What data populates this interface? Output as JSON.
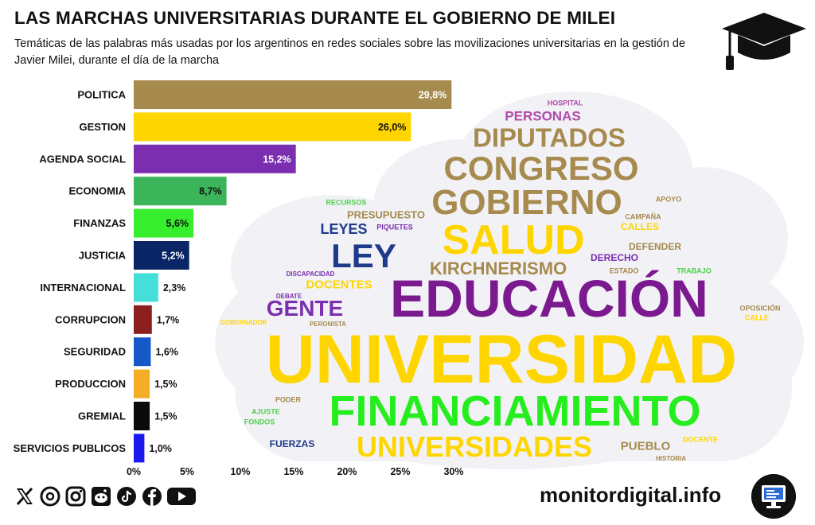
{
  "header": {
    "title": "LAS MARCHAS UNIVERSITARIAS DURANTE EL GOBIERNO DE MILEI",
    "subtitle": "Temáticas de las palabras más usadas por los argentinos en redes sociales sobre las movilizaciones universitarias en la gestión de Javier Milei, durante el día de la marcha"
  },
  "chart_data": {
    "type": "bar",
    "orientation": "horizontal",
    "categories": [
      "POLITICA",
      "GESTION",
      "AGENDA SOCIAL",
      "ECONOMIA",
      "FINANZAS",
      "JUSTICIA",
      "INTERNACIONAL",
      "CORRUPCION",
      "SEGURIDAD",
      "PRODUCCION",
      "GREMIAL",
      "SERVICIOS PUBLICOS"
    ],
    "values": [
      29.8,
      26.0,
      15.2,
      8.7,
      5.6,
      5.2,
      2.3,
      1.7,
      1.6,
      1.5,
      1.5,
      1.0
    ],
    "value_labels": [
      "29,8%",
      "26,0%",
      "15,2%",
      "8,7%",
      "5,6%",
      "5,2%",
      "2,3%",
      "1,7%",
      "1,6%",
      "1,5%",
      "1,5%",
      "1,0%"
    ],
    "colors": [
      "#a68a4e",
      "#ffd500",
      "#7b2fb0",
      "#3cb55a",
      "#36ee2e",
      "#0a2566",
      "#43dfd8",
      "#8c1f1f",
      "#1658c8",
      "#f4ad24",
      "#0a0a0a",
      "#1a1af0"
    ],
    "label_colors": [
      "#ffffff",
      "#111111",
      "#ffffff",
      "#111111",
      "#111111",
      "#ffffff",
      "#111111",
      "#111111",
      "#111111",
      "#111111",
      "#111111",
      "#111111"
    ],
    "xlim": [
      0,
      30
    ],
    "xticks": [
      0,
      5,
      10,
      15,
      20,
      25,
      30
    ],
    "xtick_labels": [
      "0%",
      "5%",
      "10%",
      "15%",
      "20%",
      "25%",
      "30%"
    ],
    "xlabel": "",
    "ylabel": ""
  },
  "word_cloud": [
    {
      "text": "HOSPITAL",
      "color": "#b04aa8",
      "weight": 1
    },
    {
      "text": "PERSONAS",
      "color": "#b04aa8",
      "weight": 4
    },
    {
      "text": "DIPUTADOS",
      "color": "#a68a4e",
      "weight": 7
    },
    {
      "text": "CONGRESO",
      "color": "#a68a4e",
      "weight": 8
    },
    {
      "text": "GOBIERNO",
      "color": "#a68a4e",
      "weight": 8
    },
    {
      "text": "RECURSOS",
      "color": "#4fd04f",
      "weight": 1
    },
    {
      "text": "APOYO",
      "color": "#a68a4e",
      "weight": 1
    },
    {
      "text": "PRESUPUESTO",
      "color": "#a68a4e",
      "weight": 2
    },
    {
      "text": "CAMPAÑA",
      "color": "#a68a4e",
      "weight": 1
    },
    {
      "text": "LEYES",
      "color": "#1f3a8a",
      "weight": 4
    },
    {
      "text": "PIQUETES",
      "color": "#7b2fb0",
      "weight": 1
    },
    {
      "text": "CALLES",
      "color": "#ffd500",
      "weight": 2
    },
    {
      "text": "SALUD",
      "color": "#ffd500",
      "weight": 10
    },
    {
      "text": "DEFENDER",
      "color": "#a68a4e",
      "weight": 2
    },
    {
      "text": "LEY",
      "color": "#1f3a8a",
      "weight": 9
    },
    {
      "text": "DERECHO",
      "color": "#7b2fb0",
      "weight": 2
    },
    {
      "text": "KIRCHNERISMO",
      "color": "#a68a4e",
      "weight": 5
    },
    {
      "text": "ESTADO",
      "color": "#a68a4e",
      "weight": 1
    },
    {
      "text": "TRABAJO",
      "color": "#4fd04f",
      "weight": 1
    },
    {
      "text": "DISCAPACIDAD",
      "color": "#7b2fb0",
      "weight": 1
    },
    {
      "text": "DOCENTES",
      "color": "#ffd500",
      "weight": 3
    },
    {
      "text": "EDUCACIÓN",
      "color": "#7b1a8f",
      "weight": 12
    },
    {
      "text": "DEBATE",
      "color": "#7b2fb0",
      "weight": 1
    },
    {
      "text": "GENTE",
      "color": "#7b2fb0",
      "weight": 6
    },
    {
      "text": "GOBERNADOR",
      "color": "#ffd500",
      "weight": 1
    },
    {
      "text": "PERONISTA",
      "color": "#a68a4e",
      "weight": 1
    },
    {
      "text": "OPOSICIÓN",
      "color": "#a68a4e",
      "weight": 1
    },
    {
      "text": "CALLE",
      "color": "#ffd500",
      "weight": 1
    },
    {
      "text": "UNIVERSIDAD",
      "color": "#ffd500",
      "weight": 16
    },
    {
      "text": "PODER",
      "color": "#a68a4e",
      "weight": 1
    },
    {
      "text": "AJUSTE",
      "color": "#4fd04f",
      "weight": 1
    },
    {
      "text": "FONDOS",
      "color": "#4fd04f",
      "weight": 1
    },
    {
      "text": "FINANCIAMIENTO",
      "color": "#26ee1e",
      "weight": 11
    },
    {
      "text": "FUERZAS",
      "color": "#1f3a8a",
      "weight": 2
    },
    {
      "text": "UNIVERSIDADES",
      "color": "#ffd500",
      "weight": 8
    },
    {
      "text": "PUEBLO",
      "color": "#a68a4e",
      "weight": 3
    },
    {
      "text": "DOCENTE",
      "color": "#ffd500",
      "weight": 1
    },
    {
      "text": "HISTORIA",
      "color": "#a68a4e",
      "weight": 1
    }
  ],
  "footer": {
    "site": "monitordigital.info",
    "social_icons": [
      "x-icon",
      "threads-icon",
      "instagram-icon",
      "reddit-icon",
      "tiktok-icon",
      "facebook-icon",
      "youtube-icon"
    ],
    "icon_glyphs": [
      "X",
      "@",
      "◎",
      "☺",
      "♪",
      "f",
      "▶"
    ]
  }
}
